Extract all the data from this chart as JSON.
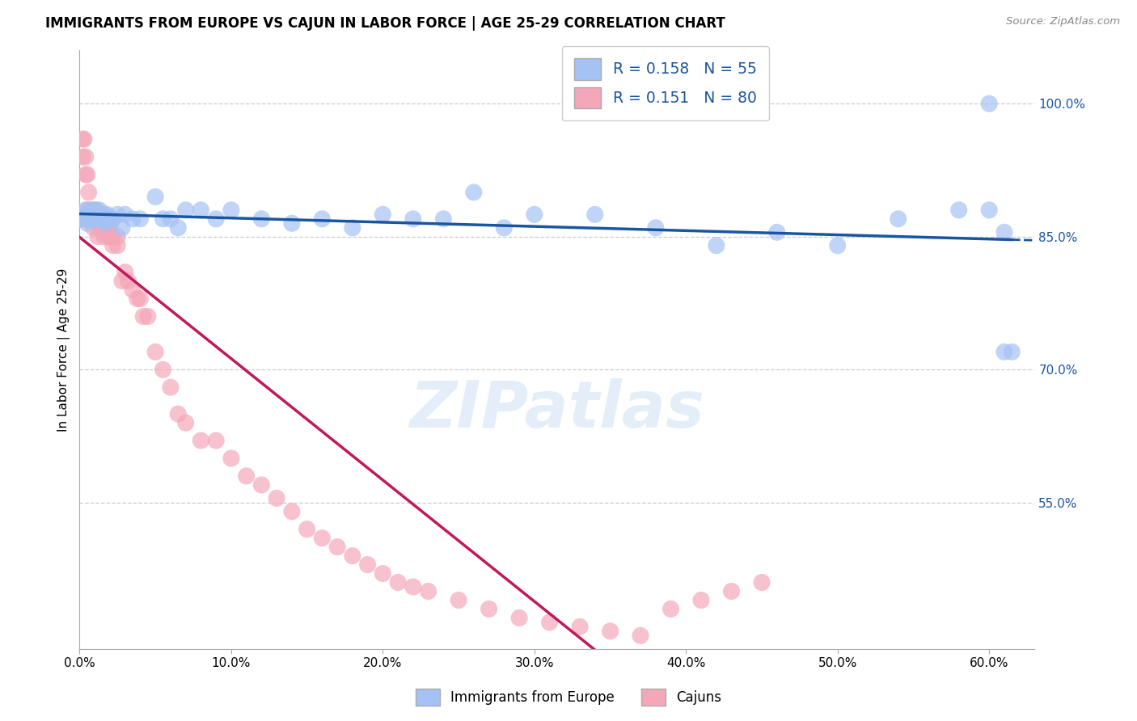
{
  "title": "IMMIGRANTS FROM EUROPE VS CAJUN IN LABOR FORCE | AGE 25-29 CORRELATION CHART",
  "source": "Source: ZipAtlas.com",
  "ylabel": "In Labor Force | Age 25-29",
  "x_tick_labels": [
    "0.0%",
    "10.0%",
    "20.0%",
    "30.0%",
    "40.0%",
    "50.0%",
    "60.0%"
  ],
  "x_tick_vals": [
    0.0,
    0.1,
    0.2,
    0.3,
    0.4,
    0.5,
    0.6
  ],
  "y_tick_labels_right": [
    "55.0%",
    "70.0%",
    "85.0%",
    "100.0%"
  ],
  "y_tick_vals_right": [
    0.55,
    0.7,
    0.85,
    1.0
  ],
  "xlim": [
    0.0,
    0.63
  ],
  "ylim": [
    0.385,
    1.06
  ],
  "legend_blue_label": "R = 0.158   N = 55",
  "legend_pink_label": "R = 0.151   N = 80",
  "blue_color": "#a4c2f4",
  "pink_color": "#f4a7b9",
  "blue_line_color": "#1a56a0",
  "pink_line_color": "#c2185b",
  "watermark": "ZIPatlas",
  "blue_scatter_x": [
    0.002,
    0.003,
    0.004,
    0.005,
    0.006,
    0.007,
    0.008,
    0.009,
    0.01,
    0.011,
    0.012,
    0.013,
    0.014,
    0.015,
    0.016,
    0.017,
    0.018,
    0.019,
    0.02,
    0.022,
    0.025,
    0.028,
    0.03,
    0.035,
    0.04,
    0.05,
    0.055,
    0.06,
    0.065,
    0.07,
    0.08,
    0.09,
    0.1,
    0.12,
    0.14,
    0.16,
    0.18,
    0.2,
    0.22,
    0.24,
    0.26,
    0.28,
    0.3,
    0.34,
    0.38,
    0.42,
    0.46,
    0.5,
    0.54,
    0.58,
    0.6,
    0.61,
    0.615,
    0.61,
    0.6
  ],
  "blue_scatter_y": [
    0.87,
    0.875,
    0.88,
    0.865,
    0.875,
    0.87,
    0.88,
    0.87,
    0.875,
    0.88,
    0.87,
    0.88,
    0.875,
    0.87,
    0.875,
    0.865,
    0.875,
    0.87,
    0.87,
    0.87,
    0.875,
    0.86,
    0.875,
    0.87,
    0.87,
    0.895,
    0.87,
    0.87,
    0.86,
    0.88,
    0.88,
    0.87,
    0.88,
    0.87,
    0.865,
    0.87,
    0.86,
    0.875,
    0.87,
    0.87,
    0.9,
    0.86,
    0.875,
    0.875,
    0.86,
    0.84,
    0.855,
    0.84,
    0.87,
    0.88,
    0.88,
    0.72,
    0.72,
    0.855,
    1.0
  ],
  "pink_scatter_x": [
    0.001,
    0.002,
    0.002,
    0.003,
    0.003,
    0.004,
    0.004,
    0.005,
    0.005,
    0.006,
    0.006,
    0.007,
    0.007,
    0.008,
    0.008,
    0.009,
    0.009,
    0.01,
    0.01,
    0.01,
    0.011,
    0.012,
    0.012,
    0.013,
    0.013,
    0.014,
    0.015,
    0.015,
    0.016,
    0.016,
    0.017,
    0.018,
    0.018,
    0.019,
    0.02,
    0.02,
    0.022,
    0.022,
    0.025,
    0.025,
    0.028,
    0.03,
    0.032,
    0.035,
    0.038,
    0.04,
    0.042,
    0.045,
    0.05,
    0.055,
    0.06,
    0.065,
    0.07,
    0.08,
    0.09,
    0.1,
    0.11,
    0.12,
    0.13,
    0.14,
    0.15,
    0.16,
    0.17,
    0.18,
    0.19,
    0.2,
    0.21,
    0.22,
    0.23,
    0.25,
    0.27,
    0.29,
    0.31,
    0.33,
    0.35,
    0.37,
    0.39,
    0.41,
    0.43,
    0.45
  ],
  "pink_scatter_y": [
    0.87,
    0.96,
    0.94,
    0.87,
    0.96,
    0.94,
    0.92,
    0.92,
    0.88,
    0.9,
    0.87,
    0.88,
    0.87,
    0.87,
    0.88,
    0.87,
    0.86,
    0.87,
    0.87,
    0.88,
    0.87,
    0.87,
    0.85,
    0.87,
    0.86,
    0.87,
    0.86,
    0.87,
    0.87,
    0.85,
    0.86,
    0.86,
    0.87,
    0.85,
    0.86,
    0.85,
    0.85,
    0.84,
    0.85,
    0.84,
    0.8,
    0.81,
    0.8,
    0.79,
    0.78,
    0.78,
    0.76,
    0.76,
    0.72,
    0.7,
    0.68,
    0.65,
    0.64,
    0.62,
    0.62,
    0.6,
    0.58,
    0.57,
    0.555,
    0.54,
    0.52,
    0.51,
    0.5,
    0.49,
    0.48,
    0.47,
    0.46,
    0.455,
    0.45,
    0.44,
    0.43,
    0.42,
    0.415,
    0.41,
    0.405,
    0.4,
    0.43,
    0.44,
    0.45,
    0.46
  ]
}
